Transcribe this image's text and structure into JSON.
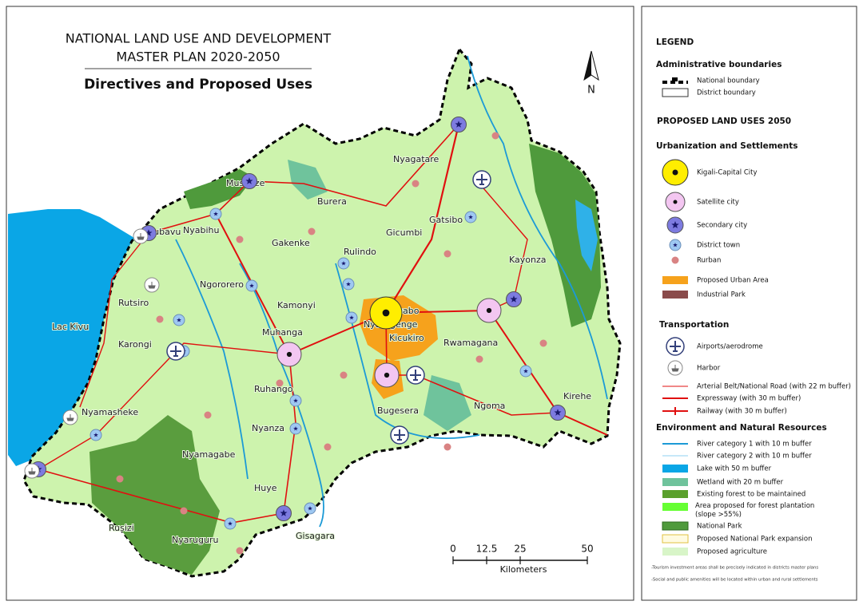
{
  "title": {
    "line1": "NATIONAL LAND USE AND DEVELOPMENT",
    "line2": "MASTER PLAN 2020-2050",
    "subtitle": "Directives and Proposed Uses"
  },
  "north": "N",
  "map_labels": [
    "Musanze",
    "Rubavu",
    "Nyabihu",
    "Burera",
    "Gakenke",
    "Gicumbi",
    "Nyagatare",
    "Gatsibo",
    "Rulindo",
    "Ngororero",
    "Kayonza",
    "Rutsiro",
    "Kamonyi",
    "Gasabo",
    "Nyarugenge",
    "Kicukiro",
    "Muhanga",
    "Rwamagana",
    "Karongi",
    "Ruhango",
    "Bugesera",
    "Ngoma",
    "Kirehe",
    "Nyamasheke",
    "Nyanza",
    "Nyamagabe",
    "Huye",
    "Rusizi",
    "Gisagara",
    "Nyaruguru",
    "Lac Kivu"
  ],
  "scale": {
    "ticks": [
      0,
      12.5,
      25,
      50
    ],
    "unit": "Kilometers"
  },
  "legend": {
    "title": "LEGEND",
    "admin": {
      "heading": "Administrative boundaries",
      "items": [
        "National boundary",
        "District boundary"
      ]
    },
    "proposed_title": "PROPOSED LAND USES 2050",
    "urbanization": {
      "heading": "Urbanization and Settlements",
      "items": [
        "Kigali-Capital City",
        "Satellite city",
        "Secondary city",
        "District town",
        "Rurban",
        "Proposed Urban Area",
        "Industrial Park"
      ]
    },
    "transportation": {
      "heading": "Transportation",
      "items": [
        "Airports/aerodrome",
        "Harbor",
        "Arterial Belt/National Road (with 22 m buffer)",
        "Expressway (with 30 m buffer)",
        "Railway (with 30 m buffer)"
      ]
    },
    "environment": {
      "heading": "Environment and Natural Resources",
      "items": [
        "River category 1 with 10 m buffer",
        "River category 2 with 10 m buffer",
        "Lake with 50 m buffer",
        "Wetland with 20 m buffer",
        "Existing forest to be maintained",
        "Area proposed for forest plantation (slope >55%)",
        "National Park",
        "Proposed National Park expansion",
        "Proposed agriculture"
      ]
    },
    "notes": [
      "-Tourism investment areas shall be precisely indicated in districts master plans",
      "-Social and public amenities will be located within urban and rural settlements"
    ]
  }
}
